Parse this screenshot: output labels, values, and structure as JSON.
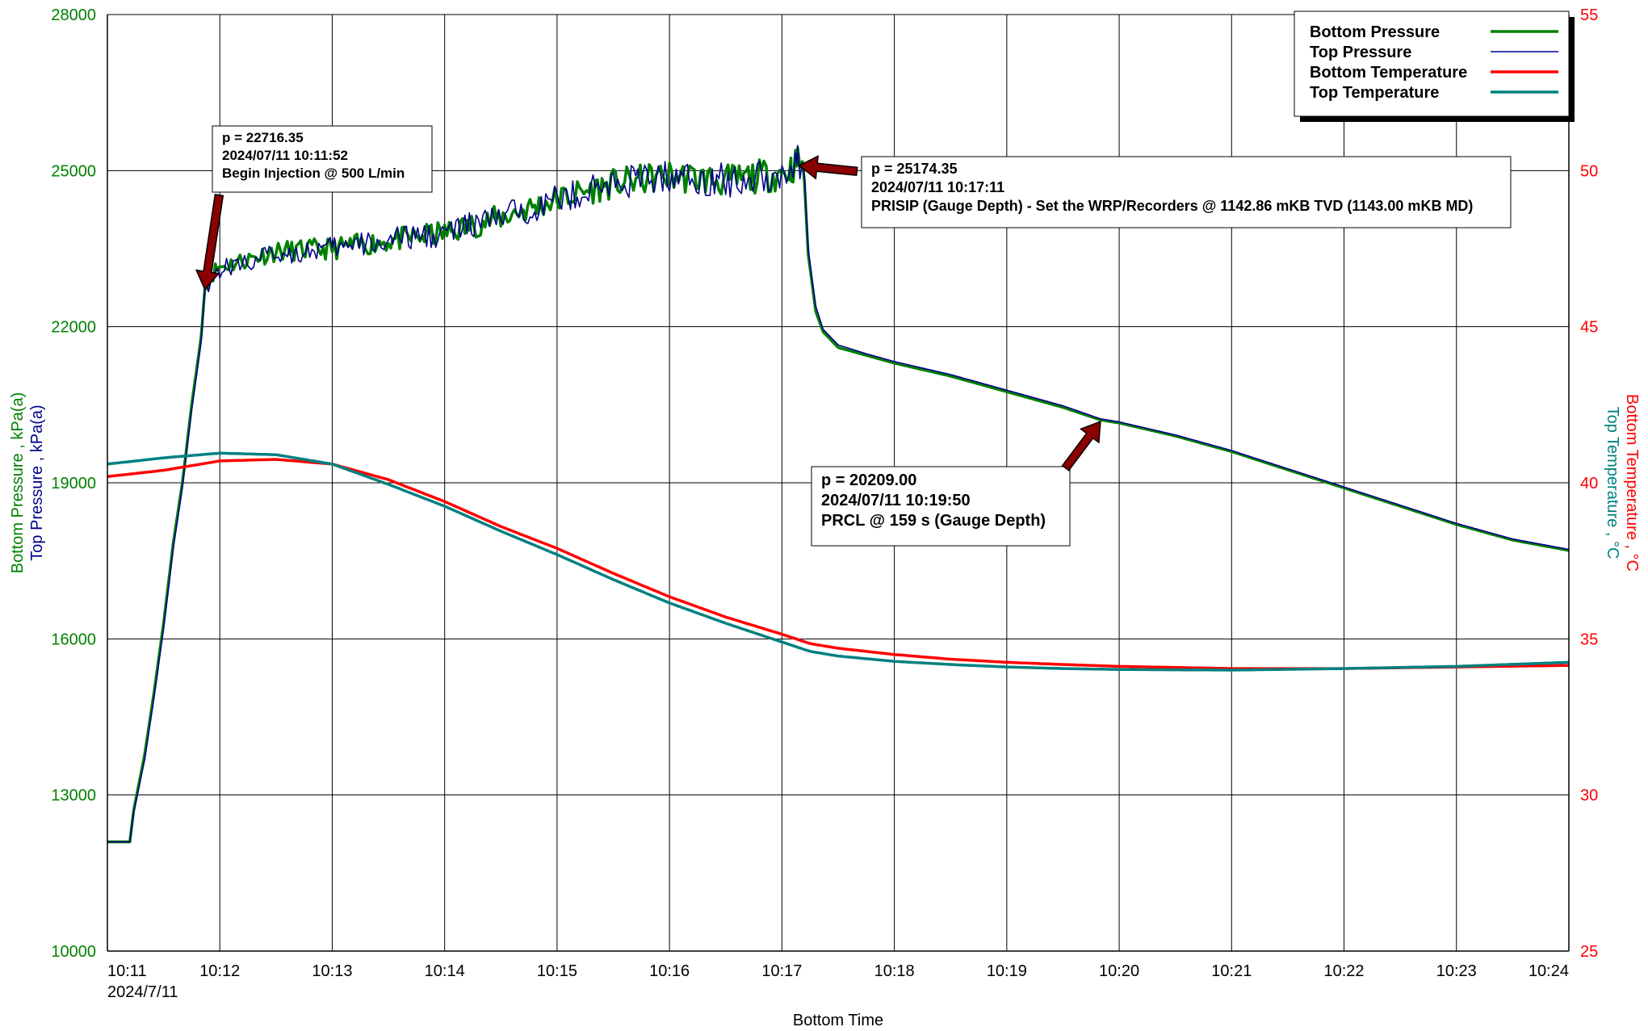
{
  "chart_data": {
    "type": "line",
    "xlabel": "Bottom Time",
    "x_ticks": [
      "10:11",
      "10:12",
      "10:13",
      "10:14",
      "10:15",
      "10:16",
      "10:17",
      "10:18",
      "10:19",
      "10:20",
      "10:21",
      "10:22",
      "10:23",
      "10:24"
    ],
    "x_date_label": "2024/7/11",
    "x_range": [
      "10:11:00",
      "10:24:00"
    ],
    "y_left_labels": [
      {
        "text": "Bottom Pressure , kPa(a)",
        "color": "#008000"
      },
      {
        "text": "Top Pressure , kPa(a)",
        "color": "#00008B"
      }
    ],
    "y_right_labels": [
      {
        "text": "Bottom Temperature , °C",
        "color": "#FF0000"
      },
      {
        "text": "Top Temperature , °C",
        "color": "#008080"
      }
    ],
    "y_left_ticks": [
      10000,
      13000,
      16000,
      19000,
      22000,
      25000,
      28000
    ],
    "y_left_range": [
      10000,
      28000
    ],
    "y_right_ticks": [
      25,
      30,
      35,
      40,
      45,
      50,
      55
    ],
    "y_right_range": [
      25,
      55
    ],
    "grid": true,
    "legend_position": "top-right",
    "series": [
      {
        "name": "Bottom Pressure",
        "axis": "left",
        "color": "#008000",
        "line_width": 3.5,
        "noise": 110,
        "noise_range": [
          "10:11:52",
          "10:17:11"
        ],
        "x": [
          "10:11:00",
          "10:11:12",
          "10:11:14",
          "10:11:20",
          "10:11:25",
          "10:11:30",
          "10:11:35",
          "10:11:40",
          "10:11:45",
          "10:11:50",
          "10:11:52",
          "10:11:55",
          "10:12:00",
          "10:12:30",
          "10:13:00",
          "10:13:30",
          "10:14:00",
          "10:14:30",
          "10:15:00",
          "10:15:30",
          "10:16:00",
          "10:16:30",
          "10:17:00",
          "10:17:05",
          "10:17:08",
          "10:17:11",
          "10:17:12",
          "10:17:14",
          "10:17:18",
          "10:17:22",
          "10:17:30",
          "10:17:45",
          "10:18:00",
          "10:18:30",
          "10:19:00",
          "10:19:30",
          "10:19:50",
          "10:20:00",
          "10:20:30",
          "10:21:00",
          "10:21:30",
          "10:22:00",
          "10:22:30",
          "10:23:00",
          "10:23:30",
          "10:24:00"
        ],
        "y": [
          12100,
          12100,
          12700,
          13800,
          15000,
          16300,
          17800,
          19000,
          20500,
          21800,
          22716,
          23000,
          23150,
          23450,
          23500,
          23650,
          23800,
          24100,
          24450,
          24750,
          24900,
          24800,
          24950,
          25050,
          25150,
          25174,
          24800,
          23400,
          22300,
          21900,
          21600,
          21450,
          21300,
          21050,
          20750,
          20450,
          20209,
          20150,
          19900,
          19600,
          19250,
          18900,
          18550,
          18200,
          17900,
          17700
        ]
      },
      {
        "name": "Top Pressure",
        "axis": "left",
        "color": "#00008B",
        "line_width": 1.6,
        "noise": 120,
        "noise_range": [
          "10:11:52",
          "10:17:11"
        ],
        "x": [
          "10:11:00",
          "10:11:12",
          "10:11:14",
          "10:11:20",
          "10:11:25",
          "10:11:30",
          "10:11:35",
          "10:11:40",
          "10:11:45",
          "10:11:50",
          "10:11:52",
          "10:11:55",
          "10:12:00",
          "10:12:30",
          "10:13:00",
          "10:13:30",
          "10:14:00",
          "10:14:30",
          "10:15:00",
          "10:15:30",
          "10:16:00",
          "10:16:30",
          "10:17:00",
          "10:17:05",
          "10:17:08",
          "10:17:11",
          "10:17:12",
          "10:17:14",
          "10:17:18",
          "10:17:22",
          "10:17:30",
          "10:17:45",
          "10:18:00",
          "10:18:30",
          "10:19:00",
          "10:19:30",
          "10:19:50",
          "10:20:00",
          "10:20:30",
          "10:21:00",
          "10:21:30",
          "10:22:00",
          "10:22:30",
          "10:23:00",
          "10:23:30",
          "10:24:00"
        ],
        "y": [
          12100,
          12100,
          12650,
          13700,
          14900,
          16200,
          17700,
          18900,
          20400,
          21700,
          22700,
          22950,
          23100,
          23400,
          23500,
          23650,
          23800,
          24100,
          24450,
          24750,
          24900,
          24800,
          24950,
          25050,
          25120,
          25150,
          24900,
          23500,
          22400,
          21950,
          21650,
          21480,
          21330,
          21080,
          20780,
          20480,
          20230,
          20170,
          19920,
          19620,
          19270,
          18920,
          18570,
          18220,
          17920,
          17720
        ]
      },
      {
        "name": "Bottom Temperature",
        "axis": "right",
        "color": "#FF0000",
        "line_width": 3.5,
        "noise": 0,
        "x": [
          "10:11:00",
          "10:11:30",
          "10:12:00",
          "10:12:30",
          "10:13:00",
          "10:13:30",
          "10:14:00",
          "10:14:30",
          "10:15:00",
          "10:15:30",
          "10:16:00",
          "10:16:30",
          "10:17:00",
          "10:17:15",
          "10:17:30",
          "10:18:00",
          "10:18:30",
          "10:19:00",
          "10:19:30",
          "10:20:00",
          "10:21:00",
          "10:22:00",
          "10:23:00",
          "10:24:00"
        ],
        "y": [
          40.2,
          40.4,
          40.7,
          40.75,
          40.6,
          40.1,
          39.4,
          38.6,
          37.9,
          37.1,
          36.35,
          35.7,
          35.15,
          34.85,
          34.7,
          34.5,
          34.35,
          34.25,
          34.18,
          34.12,
          34.05,
          34.05,
          34.1,
          34.15
        ]
      },
      {
        "name": "Top Temperature",
        "axis": "right",
        "color": "#008080",
        "line_width": 3.5,
        "noise": 0,
        "x": [
          "10:11:00",
          "10:11:30",
          "10:12:00",
          "10:12:30",
          "10:13:00",
          "10:13:30",
          "10:14:00",
          "10:14:30",
          "10:15:00",
          "10:15:30",
          "10:16:00",
          "10:16:30",
          "10:17:00",
          "10:17:15",
          "10:17:30",
          "10:18:00",
          "10:18:30",
          "10:19:00",
          "10:19:30",
          "10:20:00",
          "10:21:00",
          "10:22:00",
          "10:23:00",
          "10:24:00"
        ],
        "y": [
          40.6,
          40.8,
          40.95,
          40.9,
          40.6,
          39.95,
          39.25,
          38.45,
          37.7,
          36.9,
          36.15,
          35.5,
          34.9,
          34.6,
          34.45,
          34.28,
          34.18,
          34.1,
          34.05,
          34.02,
          34.0,
          34.05,
          34.12,
          34.25
        ]
      }
    ],
    "annotations": [
      {
        "lines": [
          "p = 22716.35",
          "2024/07/11 10:11:52",
          "Begin Injection @ 500 L/min"
        ],
        "point": [
          "10:11:52",
          22716.35
        ],
        "arrow_direction": "down"
      },
      {
        "lines": [
          "p = 25174.35",
          "2024/07/11 10:17:11",
          "PRISIP (Gauge Depth) - Set the WRP/Recorders @ 1142.86 mKB TVD (1143.00 mKB MD)"
        ],
        "point": [
          "10:17:11",
          25174.35
        ],
        "arrow_direction": "left"
      },
      {
        "lines": [
          "p = 20209.00",
          "2024/07/11 10:19:50",
          "PRCL @ 159 s (Gauge Depth)"
        ],
        "point": [
          "10:19:50",
          20209.0
        ],
        "arrow_direction": "up"
      }
    ],
    "colors": {
      "left_axis": "#008000",
      "right_axis": "#FF0000",
      "grid": "#000000",
      "arrow_fill": "#8B0000"
    }
  }
}
